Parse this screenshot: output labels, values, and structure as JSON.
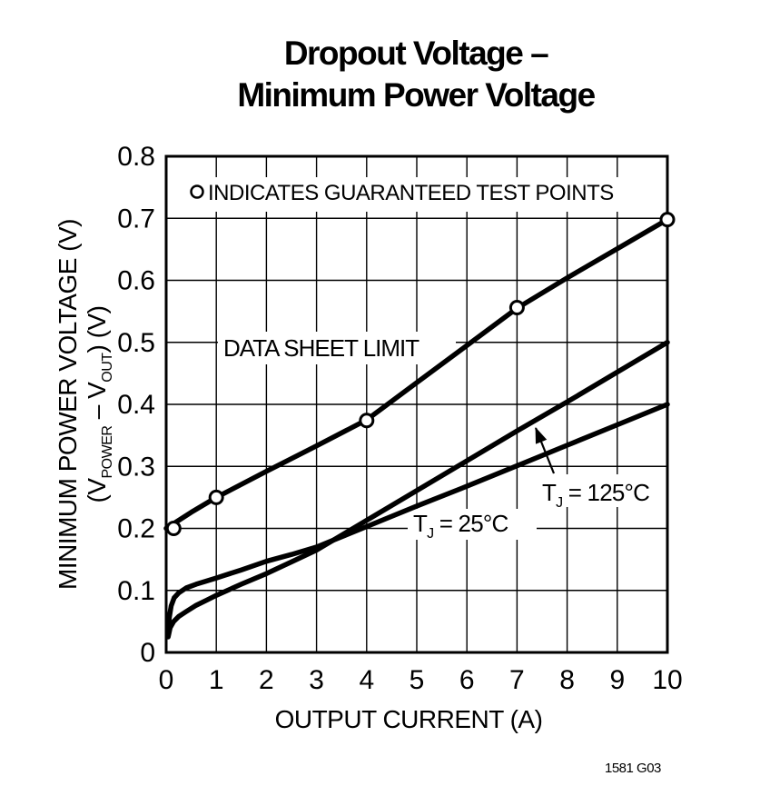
{
  "colors": {
    "ink": "#000000",
    "paper": "#ffffff"
  },
  "title": {
    "line1": "Dropout Voltage –",
    "line2": "Minimum Power Voltage"
  },
  "footer": {
    "figure_id": "1581 G03"
  },
  "chart_data": {
    "type": "line",
    "title": "Dropout Voltage – Minimum Power Voltage",
    "xlabel": "OUTPUT CURRENT (A)",
    "ylabel_line1": "MINIMUM POWER VOLTAGE (V)",
    "ylabel_line2_segments": [
      {
        "t": "(V"
      },
      {
        "t": "POWER",
        "sub": true
      },
      {
        "t": " – V"
      },
      {
        "t": "OUT",
        "sub": true
      },
      {
        "t": ") (V)"
      }
    ],
    "xlim": [
      0,
      10
    ],
    "ylim": [
      0,
      0.8
    ],
    "xticks": [
      0,
      1,
      2,
      3,
      4,
      5,
      6,
      7,
      8,
      9,
      10
    ],
    "xtick_labels": [
      "0",
      "1",
      "2",
      "3",
      "4",
      "5",
      "6",
      "7",
      "8",
      "9",
      "10"
    ],
    "yticks": [
      0,
      0.1,
      0.2,
      0.3,
      0.4,
      0.5,
      0.6,
      0.7,
      0.8
    ],
    "ytick_labels": [
      "0",
      "0.1",
      "0.2",
      "0.3",
      "0.4",
      "0.5",
      "0.6",
      "0.7",
      "0.8"
    ],
    "grid": true,
    "legend_note": {
      "marker": "circle",
      "text": "INDICATES GUARANTEED TEST POINTS"
    },
    "series": [
      {
        "name": "DATA SHEET LIMIT",
        "points": [
          [
            0,
            0.2
          ],
          [
            0.5,
            0.226
          ],
          [
            1,
            0.25
          ],
          [
            2,
            0.292
          ],
          [
            3,
            0.333
          ],
          [
            4,
            0.375
          ],
          [
            5,
            0.435
          ],
          [
            6,
            0.495
          ],
          [
            7,
            0.555
          ],
          [
            8,
            0.604
          ],
          [
            9,
            0.651
          ],
          [
            10,
            0.698
          ]
        ],
        "guaranteed_test_points": [
          [
            0.15,
            0.2
          ],
          [
            1,
            0.25
          ],
          [
            4,
            0.374
          ],
          [
            7,
            0.556
          ],
          [
            10,
            0.698
          ]
        ]
      },
      {
        "name": "TJ = 125°C",
        "points": [
          [
            0.04,
            0.025
          ],
          [
            0.08,
            0.04
          ],
          [
            0.15,
            0.05
          ],
          [
            0.25,
            0.058
          ],
          [
            0.4,
            0.066
          ],
          [
            0.6,
            0.076
          ],
          [
            0.8,
            0.084
          ],
          [
            1,
            0.092
          ],
          [
            1.5,
            0.11
          ],
          [
            2,
            0.127
          ],
          [
            2.5,
            0.146
          ],
          [
            3,
            0.165
          ],
          [
            4,
            0.213
          ],
          [
            5,
            0.261
          ],
          [
            6,
            0.309
          ],
          [
            7,
            0.357
          ],
          [
            8,
            0.404
          ],
          [
            9,
            0.452
          ],
          [
            10,
            0.5
          ]
        ]
      },
      {
        "name": "TJ = 25°C",
        "points": [
          [
            0.04,
            0.03
          ],
          [
            0.06,
            0.055
          ],
          [
            0.1,
            0.075
          ],
          [
            0.16,
            0.088
          ],
          [
            0.25,
            0.096
          ],
          [
            0.4,
            0.104
          ],
          [
            0.6,
            0.11
          ],
          [
            0.8,
            0.115
          ],
          [
            1,
            0.12
          ],
          [
            1.5,
            0.133
          ],
          [
            2,
            0.147
          ],
          [
            2.5,
            0.158
          ],
          [
            3,
            0.17
          ],
          [
            4,
            0.203
          ],
          [
            5,
            0.236
          ],
          [
            6,
            0.268
          ],
          [
            7,
            0.301
          ],
          [
            8,
            0.334
          ],
          [
            9,
            0.367
          ],
          [
            10,
            0.4
          ]
        ]
      }
    ],
    "annotations": [
      {
        "id": "data-sheet-limit-label",
        "text": "DATA SHEET LIMIT"
      },
      {
        "id": "tj-125-label",
        "segments": [
          {
            "t": "T"
          },
          {
            "t": "J",
            "sub": true
          },
          {
            "t": " = 125°C"
          }
        ],
        "arrow": true
      },
      {
        "id": "tj-25-label",
        "segments": [
          {
            "t": "T"
          },
          {
            "t": "J",
            "sub": true
          },
          {
            "t": " = 25°C"
          }
        ]
      }
    ]
  }
}
